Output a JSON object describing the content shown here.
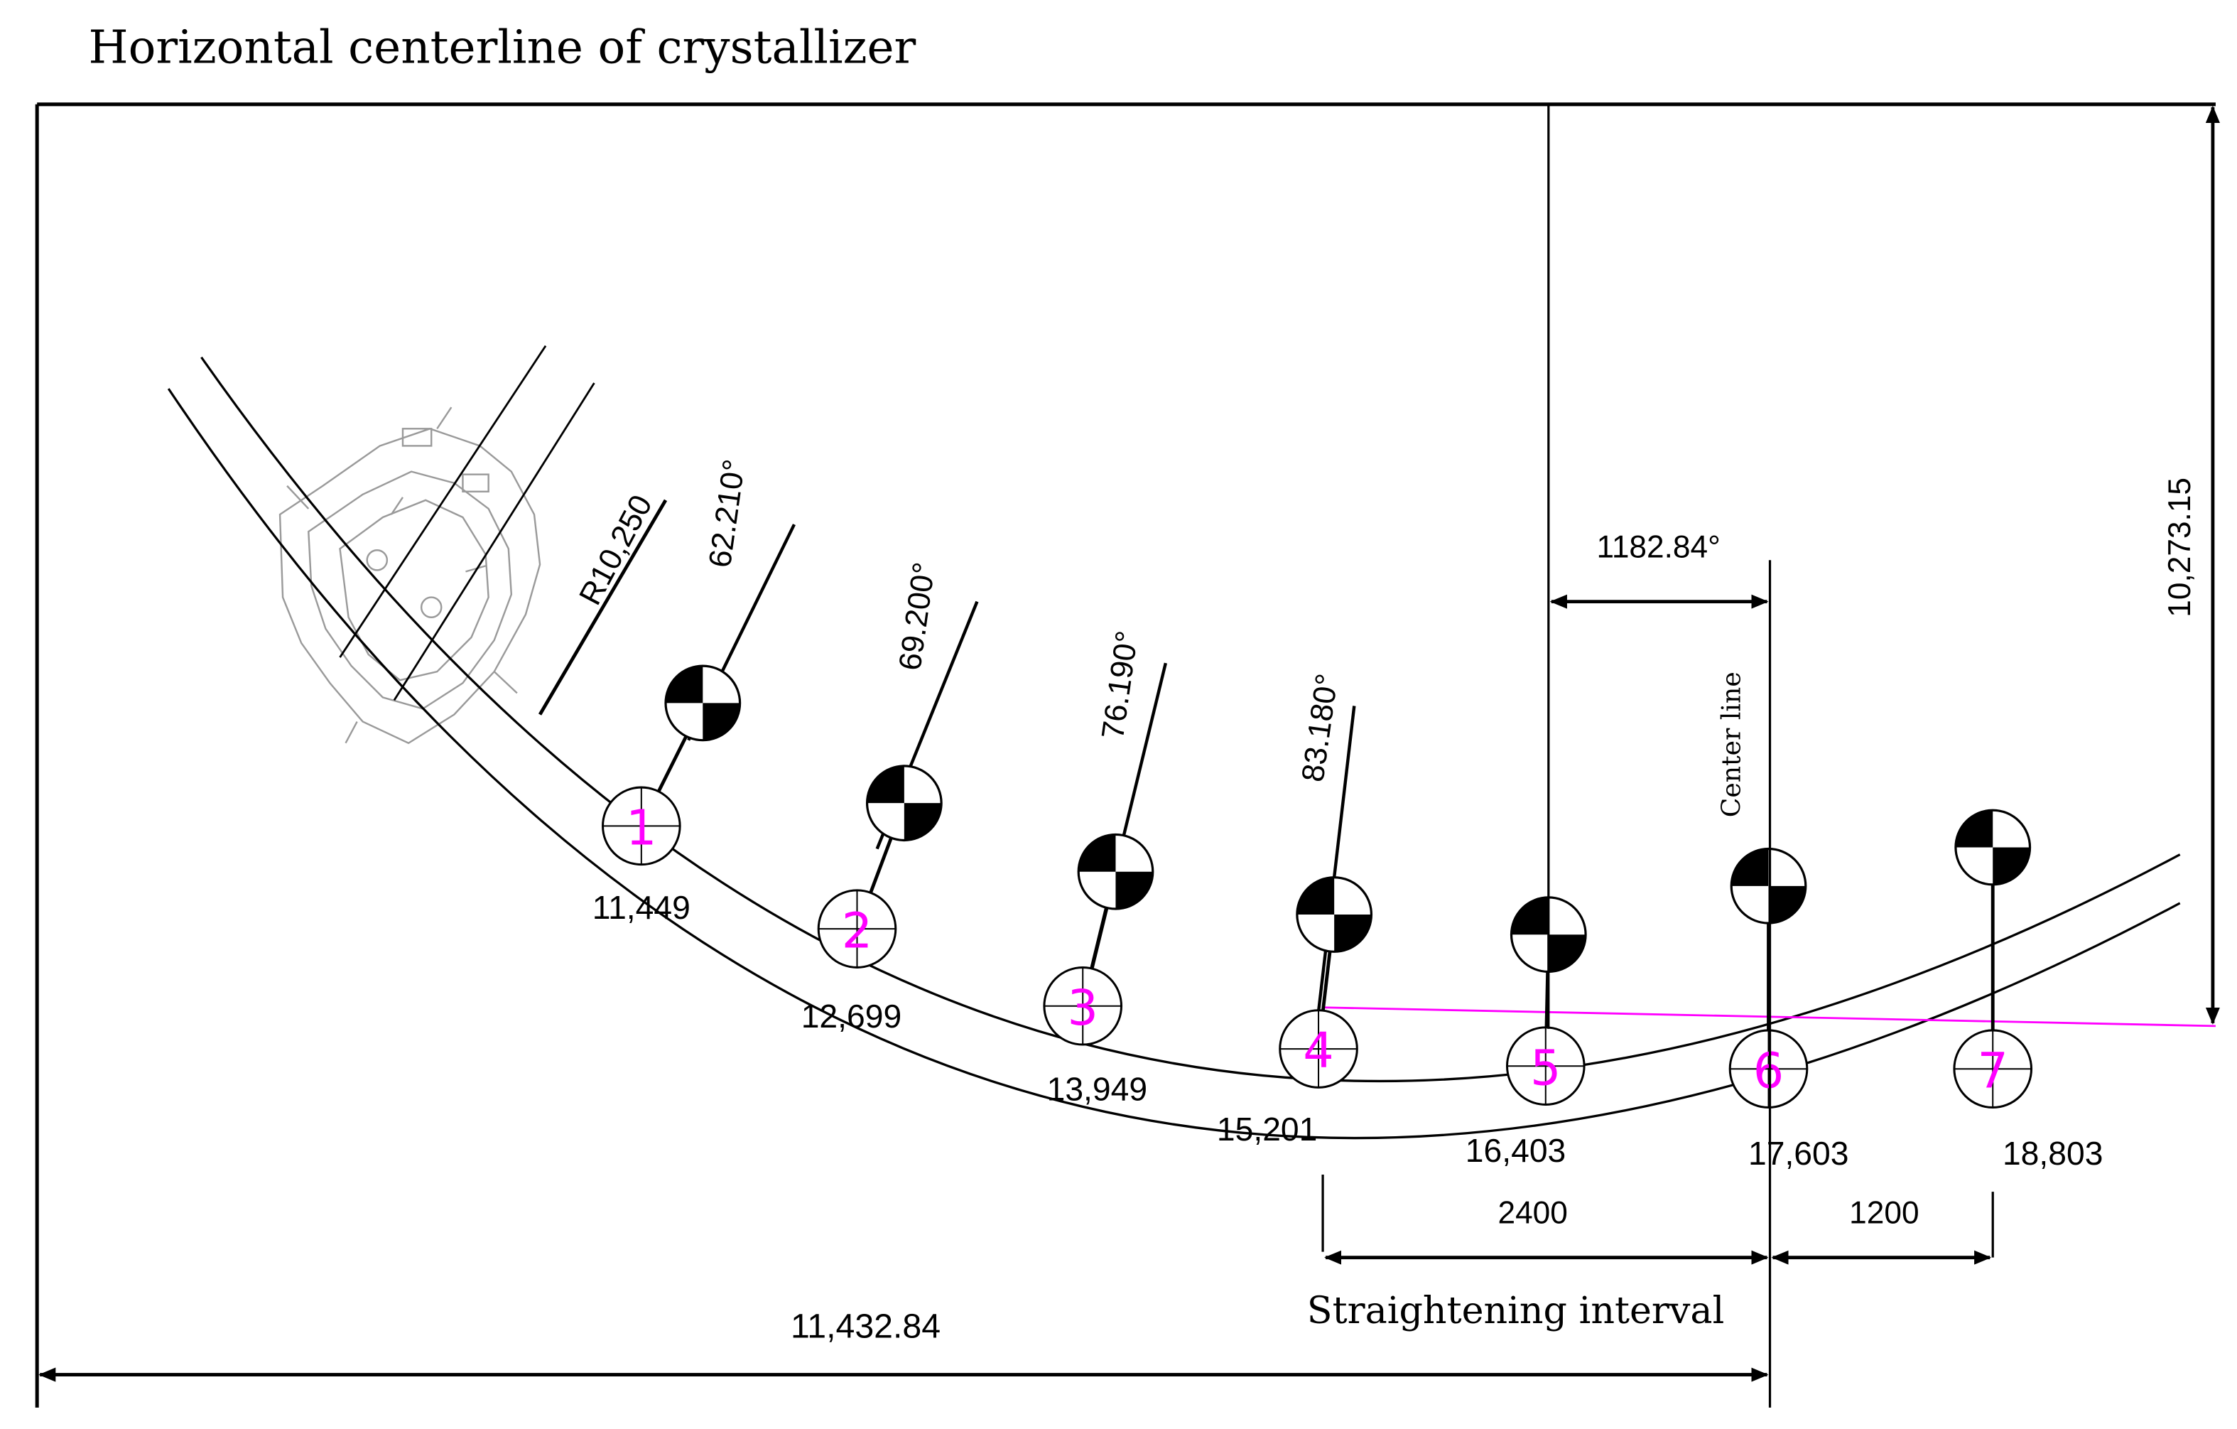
{
  "title": "Horizontal centerline of crystallizer",
  "radius_label": "R10,250",
  "center_line_label": "Center line",
  "straightening_label": "Straightening interval",
  "dimensions": {
    "total_horizontal": "11,432.84",
    "vertical": "10,273.15",
    "offset_top": "1182.84°",
    "straightening_span": "2400",
    "last_span": "1200"
  },
  "colors": {
    "line": "#000000",
    "roller_number": "#ff00ff",
    "baseline": "#ff00ff",
    "sketch": "#9a9a9a"
  },
  "rollers": [
    {
      "number": "1",
      "position": "11,449",
      "angle": "62.210°"
    },
    {
      "number": "2",
      "position": "12,699",
      "angle": "69.200°"
    },
    {
      "number": "3",
      "position": "13,949",
      "angle": "76.190°"
    },
    {
      "number": "4",
      "position": "15,201",
      "angle": "83.180°"
    },
    {
      "number": "5",
      "position": "16,403",
      "angle": ""
    },
    {
      "number": "6",
      "position": "17,603",
      "angle": ""
    },
    {
      "number": "7",
      "position": "18,803",
      "angle": ""
    }
  ]
}
